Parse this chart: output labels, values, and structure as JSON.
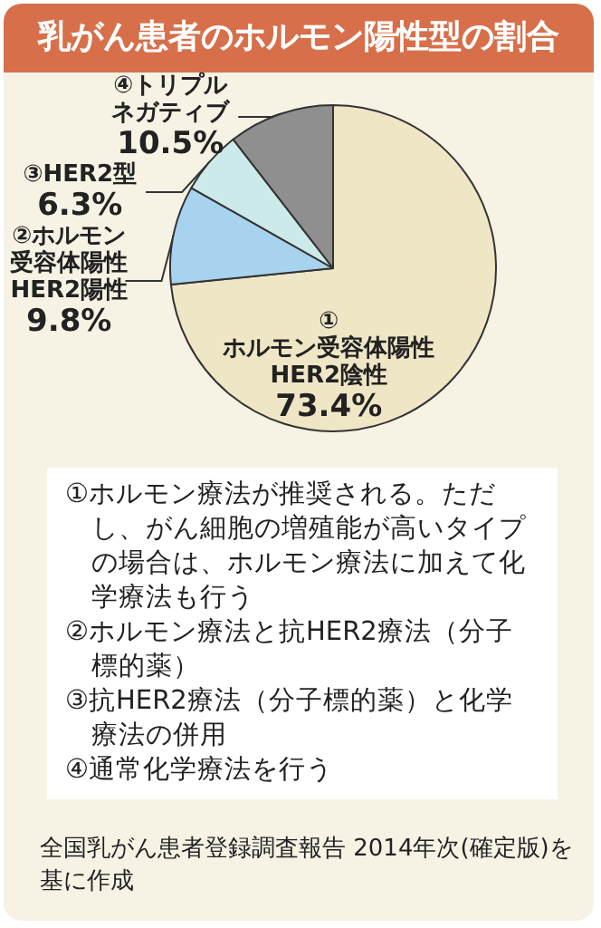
{
  "chart_data": {
    "type": "pie",
    "title": "乳がん患者のホルモン陽性型の割合",
    "categories": [
      "①ホルモン受容体陽性HER2陰性",
      "②ホルモン受容体陽性HER2陽性",
      "③HER2型",
      "④トリプルネガティブ"
    ],
    "values": [
      73.4,
      9.8,
      6.3,
      10.5
    ],
    "value_labels": [
      "73.4%",
      "9.8%",
      "6.3%",
      "10.5%"
    ],
    "colors": [
      "#efe6c6",
      "#a8d3ee",
      "#cdeaea",
      "#8f8f8f"
    ],
    "annotations": [
      "①ホルモン療法が推奨される。ただし、がん細胞の増殖能が高いタイプの場合は、ホルモン療法に加えて化学療法も行う",
      "②ホルモン療法と抗HER2療法（分子標的薬）",
      "③抗HER2療法（分子標的薬）と化学療法の併用",
      "④通常化学療法を行う",
      "全国乳がん患者登録調査報告 2014年次(確定版)を基に作成"
    ]
  }
}
